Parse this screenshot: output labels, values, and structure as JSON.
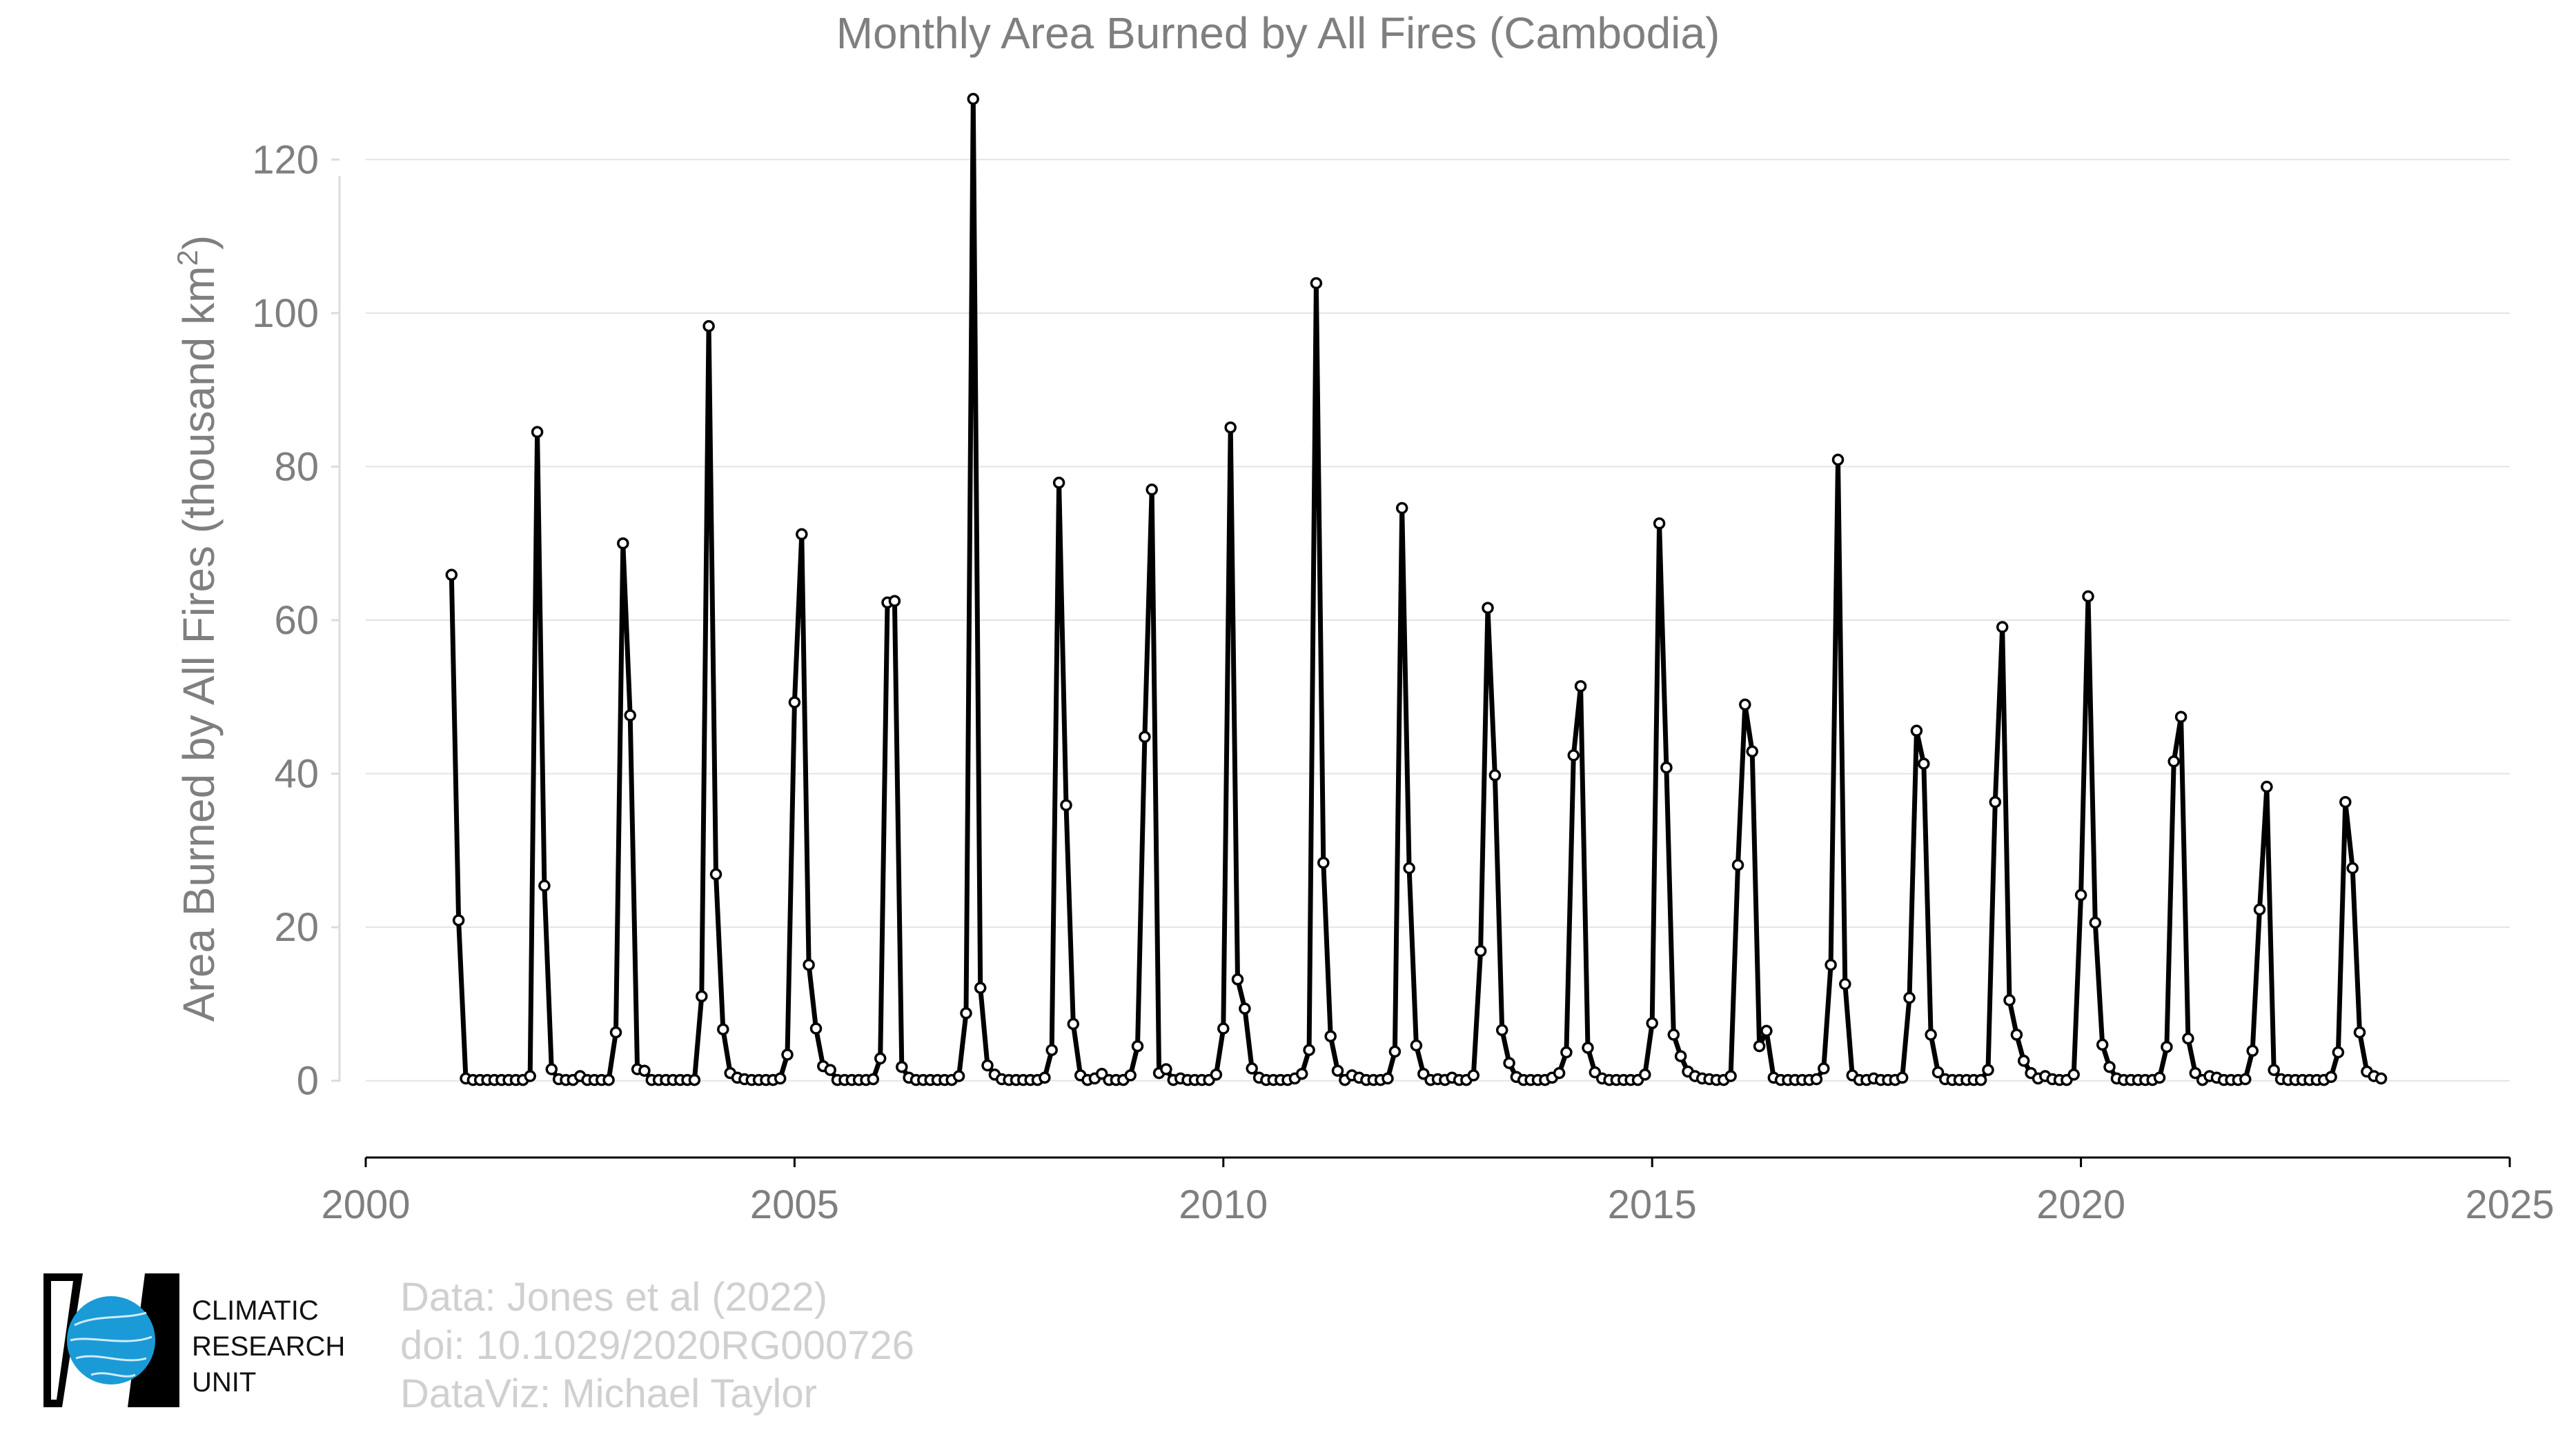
{
  "chart_data": {
    "type": "line",
    "title": "Monthly Area Burned by All Fires (Cambodia)",
    "xlabel": "",
    "ylabel": "Area Burned by All Fires (thousand km",
    "ylabel_sup": "2",
    "ylabel_tail": ")",
    "xlim": [
      2000,
      2025
    ],
    "ylim": [
      -10,
      130
    ],
    "x_ticks": [
      2000,
      2005,
      2010,
      2015,
      2020,
      2025
    ],
    "y_ticks": [
      0,
      20,
      40,
      60,
      80,
      100,
      120
    ],
    "grid": "horizontal",
    "legend": "none",
    "line_color": "#000000",
    "start_month": "2001-01",
    "series": [
      {
        "values": [
          65.9,
          20.9,
          0.3,
          0.1,
          0.1,
          0.1,
          0.1,
          0.1,
          0.1,
          0.1,
          0.1,
          0.6,
          84.5,
          25.4,
          1.5,
          0.2,
          0.1,
          0.1,
          0.6,
          0.1,
          0.1,
          0.1,
          0.1,
          6.3,
          70.0,
          47.6,
          1.5,
          1.3,
          0.1,
          0.1,
          0.1,
          0.1,
          0.1,
          0.1,
          0.1,
          11.0,
          98.3,
          26.9,
          6.7,
          1.0,
          0.4,
          0.2,
          0.1,
          0.1,
          0.1,
          0.1,
          0.3,
          3.4,
          49.3,
          71.2,
          15.1,
          6.8,
          1.9,
          1.4,
          0.1,
          0.1,
          0.1,
          0.1,
          0.1,
          0.2,
          2.9,
          62.3,
          62.5,
          1.8,
          0.4,
          0.1,
          0.1,
          0.1,
          0.1,
          0.1,
          0.1,
          0.6,
          8.8,
          127.9,
          12.1,
          2.0,
          0.8,
          0.2,
          0.1,
          0.1,
          0.1,
          0.1,
          0.1,
          0.4,
          4.0,
          77.9,
          35.9,
          7.4,
          0.7,
          0.1,
          0.3,
          0.9,
          0.1,
          0.1,
          0.1,
          0.7,
          4.5,
          44.8,
          77.0,
          1.0,
          1.5,
          0.1,
          0.3,
          0.1,
          0.1,
          0.1,
          0.1,
          0.8,
          6.8,
          85.1,
          13.2,
          9.4,
          1.6,
          0.4,
          0.1,
          0.1,
          0.1,
          0.1,
          0.3,
          0.9,
          4.0,
          103.9,
          28.4,
          5.8,
          1.3,
          0.1,
          0.7,
          0.4,
          0.1,
          0.1,
          0.1,
          0.3,
          3.8,
          74.6,
          27.7,
          4.6,
          0.9,
          0.1,
          0.2,
          0.1,
          0.4,
          0.1,
          0.1,
          0.7,
          16.9,
          61.6,
          39.8,
          6.6,
          2.3,
          0.5,
          0.1,
          0.1,
          0.1,
          0.1,
          0.4,
          1.0,
          3.7,
          42.4,
          51.4,
          4.3,
          1.1,
          0.3,
          0.1,
          0.1,
          0.1,
          0.1,
          0.1,
          0.8,
          7.5,
          72.6,
          40.8,
          6.0,
          3.2,
          1.2,
          0.6,
          0.3,
          0.2,
          0.1,
          0.1,
          0.6,
          28.1,
          49.0,
          42.9,
          4.5,
          6.5,
          0.4,
          0.1,
          0.1,
          0.1,
          0.1,
          0.1,
          0.2,
          1.6,
          15.1,
          80.9,
          12.6,
          0.7,
          0.1,
          0.1,
          0.3,
          0.1,
          0.1,
          0.1,
          0.4,
          10.8,
          45.6,
          41.3,
          6.0,
          1.1,
          0.2,
          0.1,
          0.1,
          0.1,
          0.1,
          0.1,
          1.4,
          36.3,
          59.1,
          10.5,
          6.0,
          2.6,
          1.0,
          0.3,
          0.6,
          0.2,
          0.1,
          0.1,
          0.8,
          24.2,
          63.1,
          20.6,
          4.7,
          1.8,
          0.3,
          0.1,
          0.1,
          0.1,
          0.1,
          0.1,
          0.4,
          4.4,
          41.6,
          47.4,
          5.5,
          1.0,
          0.1,
          0.6,
          0.4,
          0.1,
          0.1,
          0.1,
          0.2,
          3.9,
          22.3,
          38.3,
          1.4,
          0.2,
          0.1,
          0.1,
          0.1,
          0.1,
          0.1,
          0.1,
          0.5,
          3.7,
          36.3,
          27.7,
          6.3,
          1.2,
          0.6,
          0.3
        ]
      }
    ]
  },
  "credits": {
    "line1": "Data: Jones et al (2022)",
    "line2": "doi: 10.1029/2020RG000726",
    "line3": "DataViz: Michael Taylor"
  },
  "logo": {
    "line1": "CLIMATIC",
    "line2": "RESEARCH",
    "line3": "UNIT",
    "accent": "#1a9bd7"
  }
}
